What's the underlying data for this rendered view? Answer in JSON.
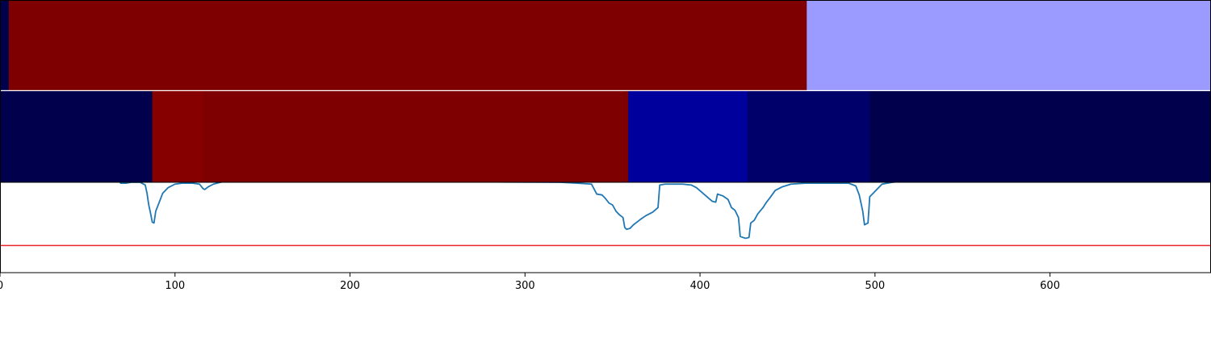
{
  "chart_data": {
    "type": "heatmap",
    "x_range": [
      0,
      692
    ],
    "x_ticks": [
      {
        "value": 0,
        "label": "0"
      },
      {
        "value": 100,
        "label": "100"
      },
      {
        "value": 200,
        "label": "200"
      },
      {
        "value": 300,
        "label": "300"
      },
      {
        "value": 400,
        "label": "400"
      },
      {
        "value": 500,
        "label": "500"
      },
      {
        "value": 600,
        "label": "600"
      }
    ],
    "band_rows": [
      {
        "segments": [
          {
            "start": 0,
            "end": 5,
            "color": "#00004d"
          },
          {
            "start": 5,
            "end": 461,
            "color": "#7f0000"
          },
          {
            "start": 461,
            "end": 692,
            "color": "#9b9bff"
          }
        ]
      },
      {
        "segments": [
          {
            "start": 0,
            "end": 87,
            "color": "#00004d"
          },
          {
            "start": 87,
            "end": 116,
            "color": "#870000"
          },
          {
            "start": 116,
            "end": 359,
            "color": "#7f0000"
          },
          {
            "start": 359,
            "end": 427,
            "color": "#00009d"
          },
          {
            "start": 427,
            "end": 497,
            "color": "#00006b"
          },
          {
            "start": 497,
            "end": 692,
            "color": "#00004d"
          }
        ]
      }
    ],
    "line_series": {
      "color": "#1f77b4",
      "threshold": {
        "value": 0.3,
        "color": "#e8262a"
      },
      "y_range": [
        0,
        1
      ],
      "points": [
        [
          0,
          1.02
        ],
        [
          60,
          1.02
        ],
        [
          68,
          1.01
        ],
        [
          69,
          0.99
        ],
        [
          72,
          0.99
        ],
        [
          75,
          1.0
        ],
        [
          80,
          1.0
        ],
        [
          83,
          0.97
        ],
        [
          84,
          0.88
        ],
        [
          85,
          0.75
        ],
        [
          86,
          0.66
        ],
        [
          87,
          0.56
        ],
        [
          88,
          0.55
        ],
        [
          89,
          0.68
        ],
        [
          91,
          0.78
        ],
        [
          93,
          0.88
        ],
        [
          96,
          0.94
        ],
        [
          100,
          0.98
        ],
        [
          104,
          0.99
        ],
        [
          110,
          0.99
        ],
        [
          114,
          0.98
        ],
        [
          116,
          0.93
        ],
        [
          117,
          0.92
        ],
        [
          119,
          0.95
        ],
        [
          122,
          0.98
        ],
        [
          130,
          1.02
        ],
        [
          320,
          1.0
        ],
        [
          330,
          0.99
        ],
        [
          338,
          0.98
        ],
        [
          341,
          0.87
        ],
        [
          344,
          0.86
        ],
        [
          346,
          0.82
        ],
        [
          348,
          0.77
        ],
        [
          350,
          0.75
        ],
        [
          352,
          0.68
        ],
        [
          354,
          0.64
        ],
        [
          356,
          0.61
        ],
        [
          357,
          0.5
        ],
        [
          358,
          0.48
        ],
        [
          360,
          0.49
        ],
        [
          362,
          0.53
        ],
        [
          364,
          0.56
        ],
        [
          366,
          0.59
        ],
        [
          369,
          0.63
        ],
        [
          373,
          0.67
        ],
        [
          376,
          0.72
        ],
        [
          377,
          0.97
        ],
        [
          380,
          0.98
        ],
        [
          390,
          0.98
        ],
        [
          395,
          0.97
        ],
        [
          398,
          0.94
        ],
        [
          401,
          0.89
        ],
        [
          404,
          0.84
        ],
        [
          407,
          0.79
        ],
        [
          409,
          0.78
        ],
        [
          410,
          0.87
        ],
        [
          413,
          0.85
        ],
        [
          416,
          0.81
        ],
        [
          418,
          0.72
        ],
        [
          420,
          0.69
        ],
        [
          422,
          0.61
        ],
        [
          423,
          0.4
        ],
        [
          426,
          0.38
        ],
        [
          428,
          0.39
        ],
        [
          429,
          0.55
        ],
        [
          431,
          0.58
        ],
        [
          433,
          0.65
        ],
        [
          436,
          0.72
        ],
        [
          438,
          0.78
        ],
        [
          440,
          0.83
        ],
        [
          443,
          0.91
        ],
        [
          447,
          0.95
        ],
        [
          452,
          0.98
        ],
        [
          460,
          0.99
        ],
        [
          485,
          0.99
        ],
        [
          489,
          0.96
        ],
        [
          491,
          0.86
        ],
        [
          493,
          0.68
        ],
        [
          494,
          0.53
        ],
        [
          496,
          0.55
        ],
        [
          497,
          0.84
        ],
        [
          499,
          0.88
        ],
        [
          501,
          0.92
        ],
        [
          504,
          0.98
        ],
        [
          510,
          1.0
        ],
        [
          520,
          1.02
        ],
        [
          692,
          1.02
        ]
      ]
    }
  }
}
